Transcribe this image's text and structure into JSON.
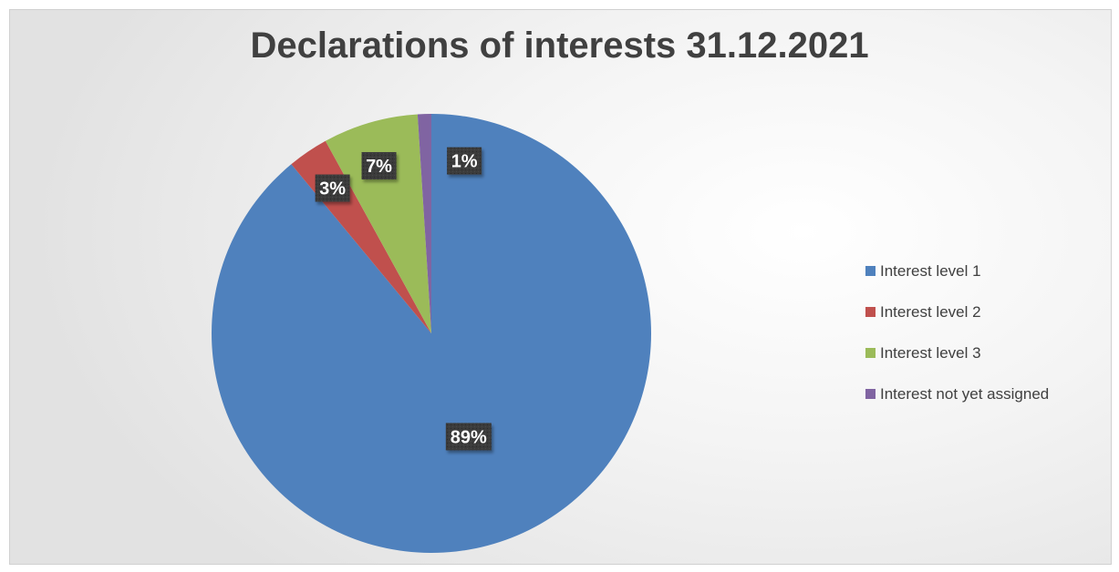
{
  "chart_data": {
    "type": "pie",
    "title": "Declarations of interests 31.12.2021",
    "slices": [
      {
        "label": "Interest level 1",
        "value": 89,
        "data_label": "89%",
        "color": "#4f81bd"
      },
      {
        "label": "Interest level 2",
        "value": 3,
        "data_label": "3%",
        "color": "#c0504d"
      },
      {
        "label": "Interest level 3",
        "value": 7,
        "data_label": "7%",
        "color": "#9bbb59"
      },
      {
        "label": "Interest not yet assigned",
        "value": 1,
        "data_label": "1%",
        "color": "#8064a2"
      }
    ],
    "legend_position": "right",
    "data_label_style": {
      "background": "#333333",
      "text_color": "#ffffff"
    }
  }
}
